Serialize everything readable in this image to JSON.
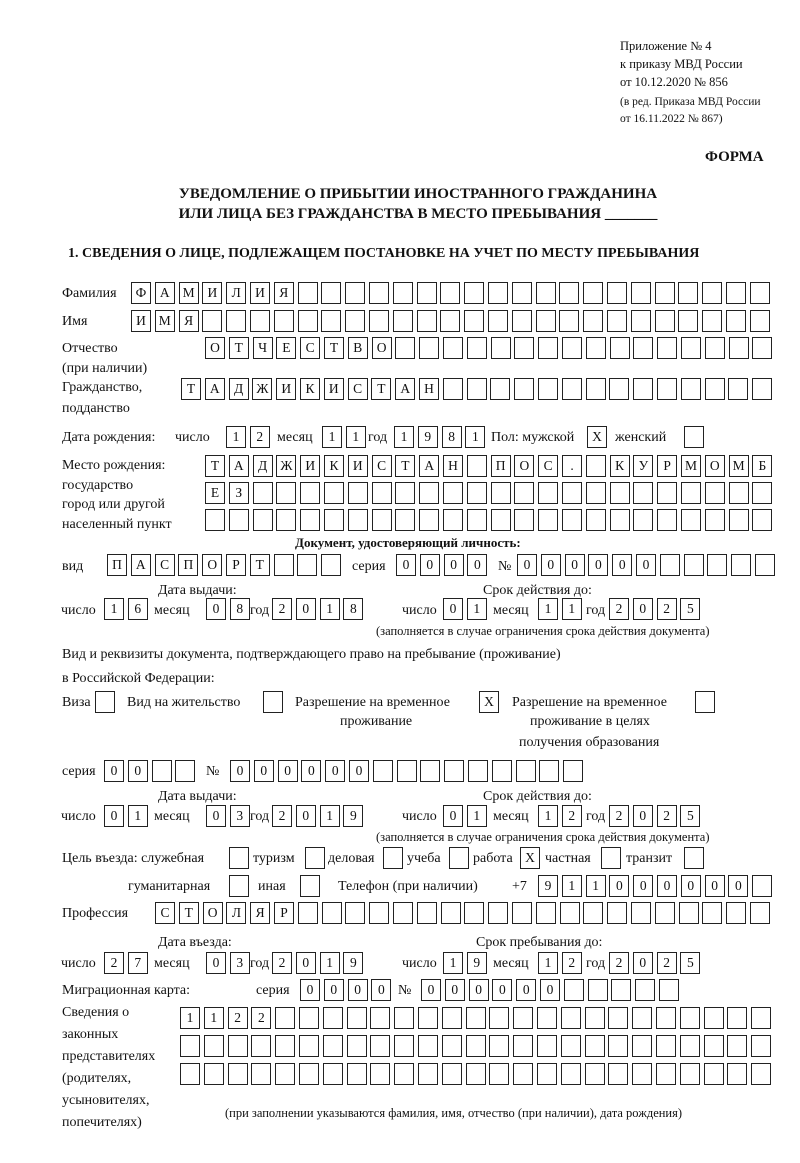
{
  "header": {
    "appendix": "Приложение № 4",
    "order": "к приказу МВД России",
    "date": "от 10.12.2020 № 856",
    "edition1": "(в ред. Приказа МВД России",
    "edition2": "от 16.11.2022 № 867)",
    "form": "ФОРМА",
    "title1": "УВЕДОМЛЕНИЕ О ПРИБЫТИИ ИНОСТРАННОГО ГРАЖДАНИНА",
    "title2": "ИЛИ ЛИЦА БЕЗ ГРАЖДАНСТВА В МЕСТО ПРЕБЫВАНИЯ _______",
    "section1": "1. СВЕДЕНИЯ О ЛИЦЕ, ПОДЛЕЖАЩЕМ ПОСТАНОВКЕ НА УЧЕТ ПО МЕСТУ ПРЕБЫВАНИЯ"
  },
  "labels": {
    "surname": "Фамилия",
    "name": "Имя",
    "patronymic1": "Отчество",
    "patronymic2": "(при наличии)",
    "citizenship1": "Гражданство,",
    "citizenship2": "подданство",
    "birth_date": "Дата рождения:",
    "day": "число",
    "month": "месяц",
    "year": "год",
    "sex": "Пол: мужской",
    "female": "женский",
    "birthplace1": "Место рождения:",
    "birthplace2": "государство",
    "birthplace3": "город или другой",
    "birthplace4": "населенный пункт",
    "id_doc": "Документ, удостоверяющий личность:",
    "kind": "вид",
    "series": "серия",
    "number": "№",
    "issue_date": "Дата выдачи:",
    "valid_until": "Срок действия до:",
    "validity_note": "(заполняется в случае ограничения срока действия документа)",
    "stay_doc1": "Вид и реквизиты документа, подтверждающего право на пребывание (проживание)",
    "stay_doc2": "в Российской Федерации:",
    "visa": "Виза",
    "residence": "Вид на жительство",
    "temp_res1": "Разрешение на временное",
    "temp_res2": "проживание",
    "temp_edu1": "Разрешение на временное",
    "temp_edu2": "проживание в целях",
    "temp_edu3": "получения образования",
    "purpose": "Цель въезда: служебная",
    "tourism": "туризм",
    "business": "деловая",
    "study": "учеба",
    "work": "работа",
    "private": "частная",
    "transit": "транзит",
    "humanitarian": "гуманитарная",
    "other": "иная",
    "phone": "Телефон (при наличии)",
    "phone_prefix": "+7",
    "profession": "Профессия",
    "entry_date": "Дата въезда:",
    "stay_until": "Срок пребывания до:",
    "migration_card": "Миграционная карта:",
    "reps1": "Сведения о",
    "reps2": "законных",
    "reps3": "представителях",
    "reps4": "(родителях,",
    "reps5": "усыновителях,",
    "reps6": "попечителях)",
    "reps_note": "(при заполнении указываются фамилия, имя, отчество (при наличии), дата рождения)"
  },
  "values": {
    "surname": "ФАМИЛИЯ",
    "name": "ИМЯ",
    "patronymic": "ОТЧЕСТВО",
    "citizenship": "ТАДЖИКИСТАН",
    "birth_day": "12",
    "birth_month": "11",
    "birth_year": "1981",
    "sex_male": "X",
    "sex_female": "",
    "birthplace_1": "ТАДЖИКИСТАН ПОС. КУРМОМБ",
    "birthplace_2": "ЕЗ",
    "birthplace_3": "",
    "doc_kind": "ПАСПОРТ",
    "doc_series": "0000",
    "doc_number": "000000",
    "doc_issue_day": "16",
    "doc_issue_month": "08",
    "doc_issue_year": "2018",
    "doc_valid_day": "01",
    "doc_valid_month": "11",
    "doc_valid_year": "2025",
    "visa": "",
    "residence": "",
    "temp_res": "X",
    "temp_edu": "",
    "stay_series": "00",
    "stay_number": "000000",
    "stay_issue_day": "01",
    "stay_issue_month": "03",
    "stay_issue_year": "2019",
    "stay_valid_day": "01",
    "stay_valid_month": "12",
    "stay_valid_year": "2025",
    "p_service": "",
    "p_tourism": "",
    "p_business": "",
    "p_study": "",
    "p_work": "X",
    "p_private": "",
    "p_transit": "",
    "p_humanitarian": "",
    "p_other": "",
    "phone": "911000000",
    "profession": "СТОЛЯР",
    "entry_day": "27",
    "entry_month": "03",
    "entry_year": "2019",
    "stay_day": "19",
    "stay_month": "12",
    "stay_year": "2025",
    "mc_series": "0000",
    "mc_number": "000000",
    "reps_1": "1122",
    "reps_2": "",
    "reps_3": ""
  }
}
